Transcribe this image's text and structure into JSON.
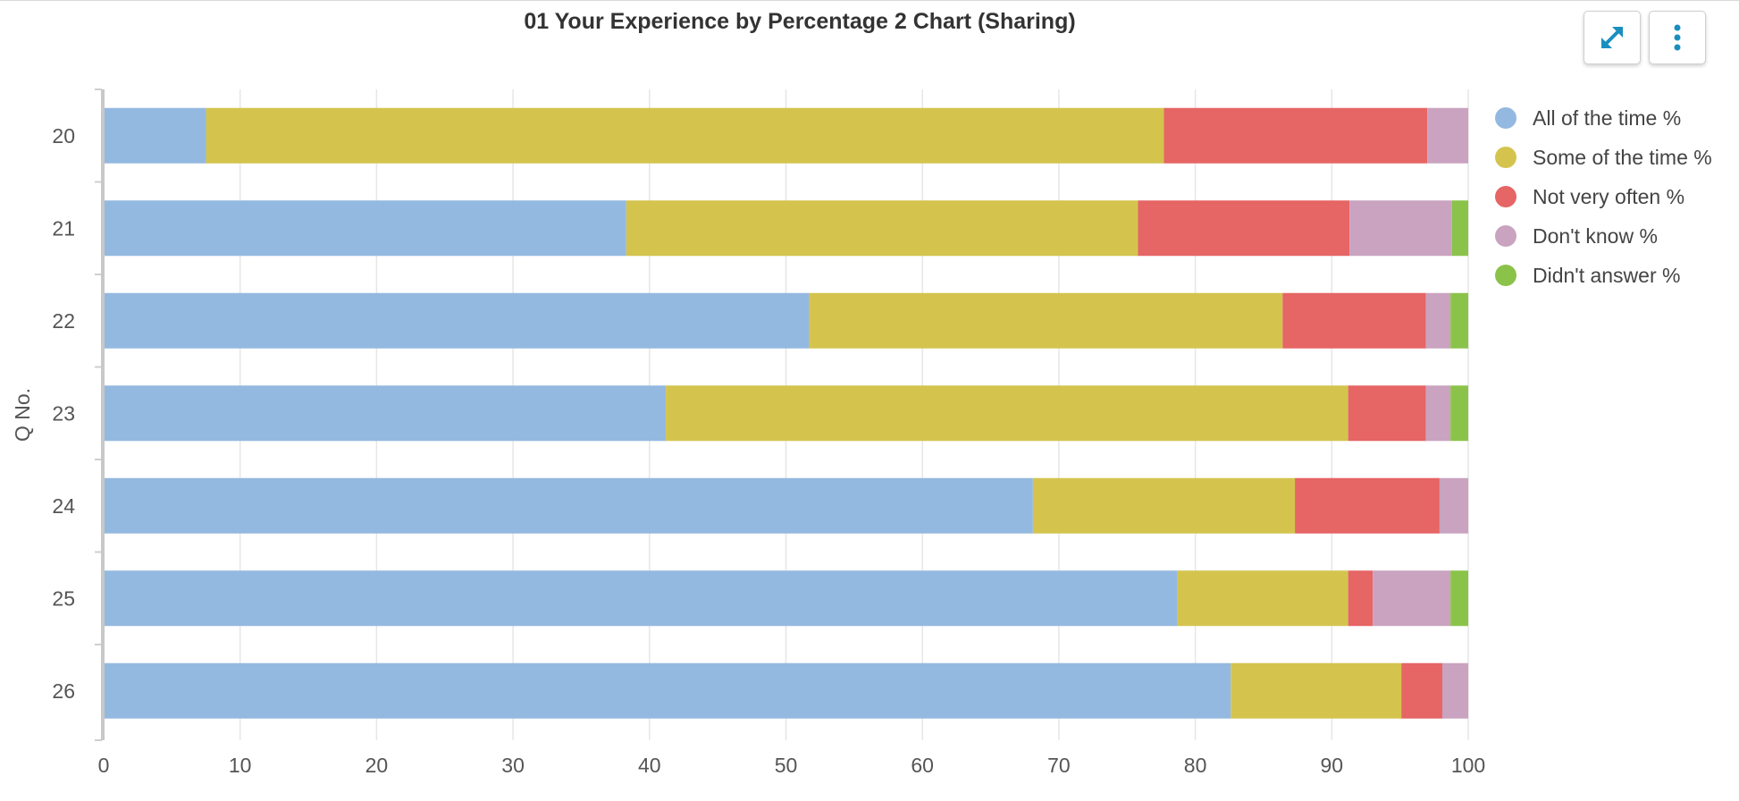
{
  "toolbar": {
    "expand_icon": "expand-arrows-icon",
    "menu_icon": "vertical-ellipsis-icon",
    "icon_color": "#1a8fbf"
  },
  "chart_data": {
    "type": "bar",
    "orientation": "horizontal",
    "stacked": true,
    "title": "01 Your Experience by Percentage 2 Chart (Sharing)",
    "xlabel": "",
    "ylabel": "Q No.",
    "xlim": [
      0,
      100
    ],
    "xticks": [
      "0",
      "10",
      "20",
      "30",
      "40",
      "50",
      "60",
      "70",
      "80",
      "90",
      "100"
    ],
    "categories": [
      "20",
      "21",
      "22",
      "23",
      "24",
      "25",
      "26"
    ],
    "grid": "vertical",
    "legend_position": "right",
    "series": [
      {
        "name": "All of the time %",
        "color": "#94b9e0",
        "values": [
          7.5,
          38.3,
          51.7,
          41.2,
          68.1,
          78.7,
          82.6
        ]
      },
      {
        "name": "Some of the time %",
        "color": "#d4c44e",
        "values": [
          70.2,
          37.5,
          34.7,
          50.0,
          19.2,
          12.5,
          12.5
        ]
      },
      {
        "name": "Not very often %",
        "color": "#e66565",
        "values": [
          19.3,
          15.5,
          10.5,
          5.7,
          10.6,
          1.8,
          3.0
        ]
      },
      {
        "name": "Don't know %",
        "color": "#c9a3c0",
        "values": [
          3.0,
          7.5,
          1.8,
          1.8,
          2.1,
          5.7,
          1.9
        ]
      },
      {
        "name": "Didn't answer %",
        "color": "#8bc34a",
        "values": [
          0,
          1.2,
          1.3,
          1.3,
          0,
          1.3,
          0
        ]
      }
    ]
  }
}
